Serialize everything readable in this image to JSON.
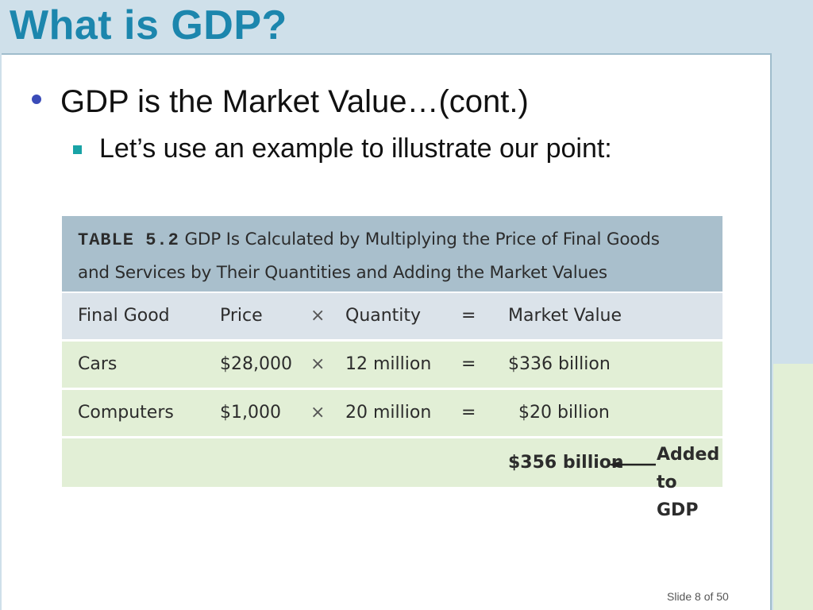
{
  "slide": {
    "title": "What is GDP?",
    "bullet_1": "GDP is the Market Value…(cont.)",
    "bullet_2": "Let’s use an example to illustrate our point:",
    "footer": "Slide 8 of 50"
  },
  "table": {
    "label": "TABLE 5.2",
    "caption_line1": "GDP Is Calculated by Multiplying the Price of Final Goods",
    "caption_line2": "and Services by Their Quantities and Adding the Market Values",
    "columns": [
      "Final Good",
      "Price",
      "×",
      "Quantity",
      "=",
      "Market Value"
    ],
    "rows": [
      [
        "Cars",
        "$28,000",
        "×",
        "12 million",
        "=",
        "$336 billion"
      ],
      [
        "Computers",
        "$1,000",
        "×",
        "20 million",
        "=",
        "$20 billion"
      ]
    ],
    "total": "$356 billion",
    "annotation_line1": "Added",
    "annotation_line2": "to GDP"
  },
  "colors": {
    "title": "#1c86ad",
    "header_band": "#a9bfcc",
    "row_green": "#e2efd6",
    "bullet_dot": "#3a4bb8",
    "bullet_square": "#19a3a6"
  }
}
